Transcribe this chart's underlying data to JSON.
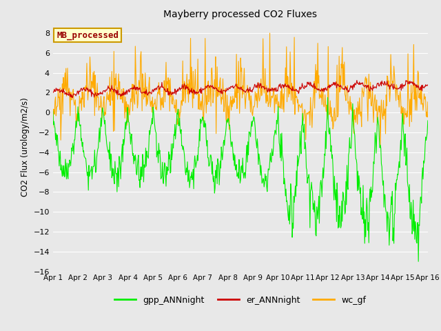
{
  "title": "Mayberry processed CO2 Fluxes",
  "ylabel": "CO2 Flux (urology/m2/s)",
  "xlim": [
    0,
    15
  ],
  "ylim": [
    -16,
    9
  ],
  "yticks": [
    -16,
    -14,
    -12,
    -10,
    -8,
    -6,
    -4,
    -2,
    0,
    2,
    4,
    6,
    8
  ],
  "xtick_labels": [
    "Apr 1",
    "Apr 2",
    "Apr 3",
    "Apr 4",
    "Apr 5",
    "Apr 6",
    "Apr 7",
    "Apr 8",
    "Apr 9",
    "Apr 10",
    "Apr 11",
    "Apr 12",
    "Apr 13",
    "Apr 14",
    "Apr 15",
    "Apr 16"
  ],
  "fig_facecolor": "#e8e8e8",
  "axes_facecolor": "#e8e8e8",
  "grid_color": "#ffffff",
  "legend_label": "MB_processed",
  "legend_bg": "#ffffcc",
  "legend_edge": "#cc9900",
  "legend_text_color": "#990000",
  "series_labels": [
    "gpp_ANNnight",
    "er_ANNnight",
    "wc_gf"
  ],
  "series_colors": [
    "#00ee00",
    "#cc0000",
    "#ffaa00"
  ],
  "line_width": 0.8
}
